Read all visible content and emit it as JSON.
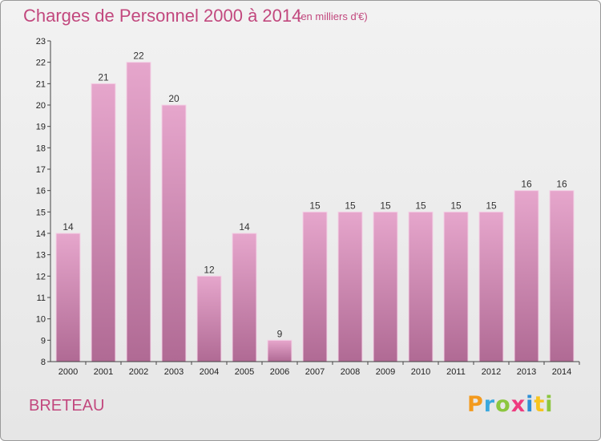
{
  "chart_data": {
    "type": "bar",
    "title": "Charges de Personnel 2000 à 2014",
    "subtitle": "(en milliers d'€)",
    "categories": [
      "2000",
      "2001",
      "2002",
      "2003",
      "2004",
      "2005",
      "2006",
      "2007",
      "2008",
      "2009",
      "2010",
      "2011",
      "2012",
      "2013",
      "2014"
    ],
    "values": [
      14,
      21,
      22,
      20,
      12,
      14,
      9,
      15,
      15,
      15,
      15,
      15,
      15,
      16,
      16
    ],
    "ylim": [
      8,
      23
    ],
    "yticks": [
      8,
      9,
      10,
      11,
      12,
      13,
      14,
      15,
      16,
      17,
      18,
      19,
      20,
      21,
      22,
      23
    ],
    "grid": false,
    "bar_color_top": "#e6a6cc",
    "bar_color_bottom": "#b06a94"
  },
  "footer": {
    "commune": "BRETEAU",
    "brand": [
      "P",
      "r",
      "o",
      "x",
      "i",
      "t",
      "i"
    ],
    "brand_colors": [
      "#f39a1e",
      "#3aa8de",
      "#8cc63f",
      "#ee3b7f",
      "#2e8fd6",
      "#f7c41f",
      "#8cc63f"
    ]
  }
}
